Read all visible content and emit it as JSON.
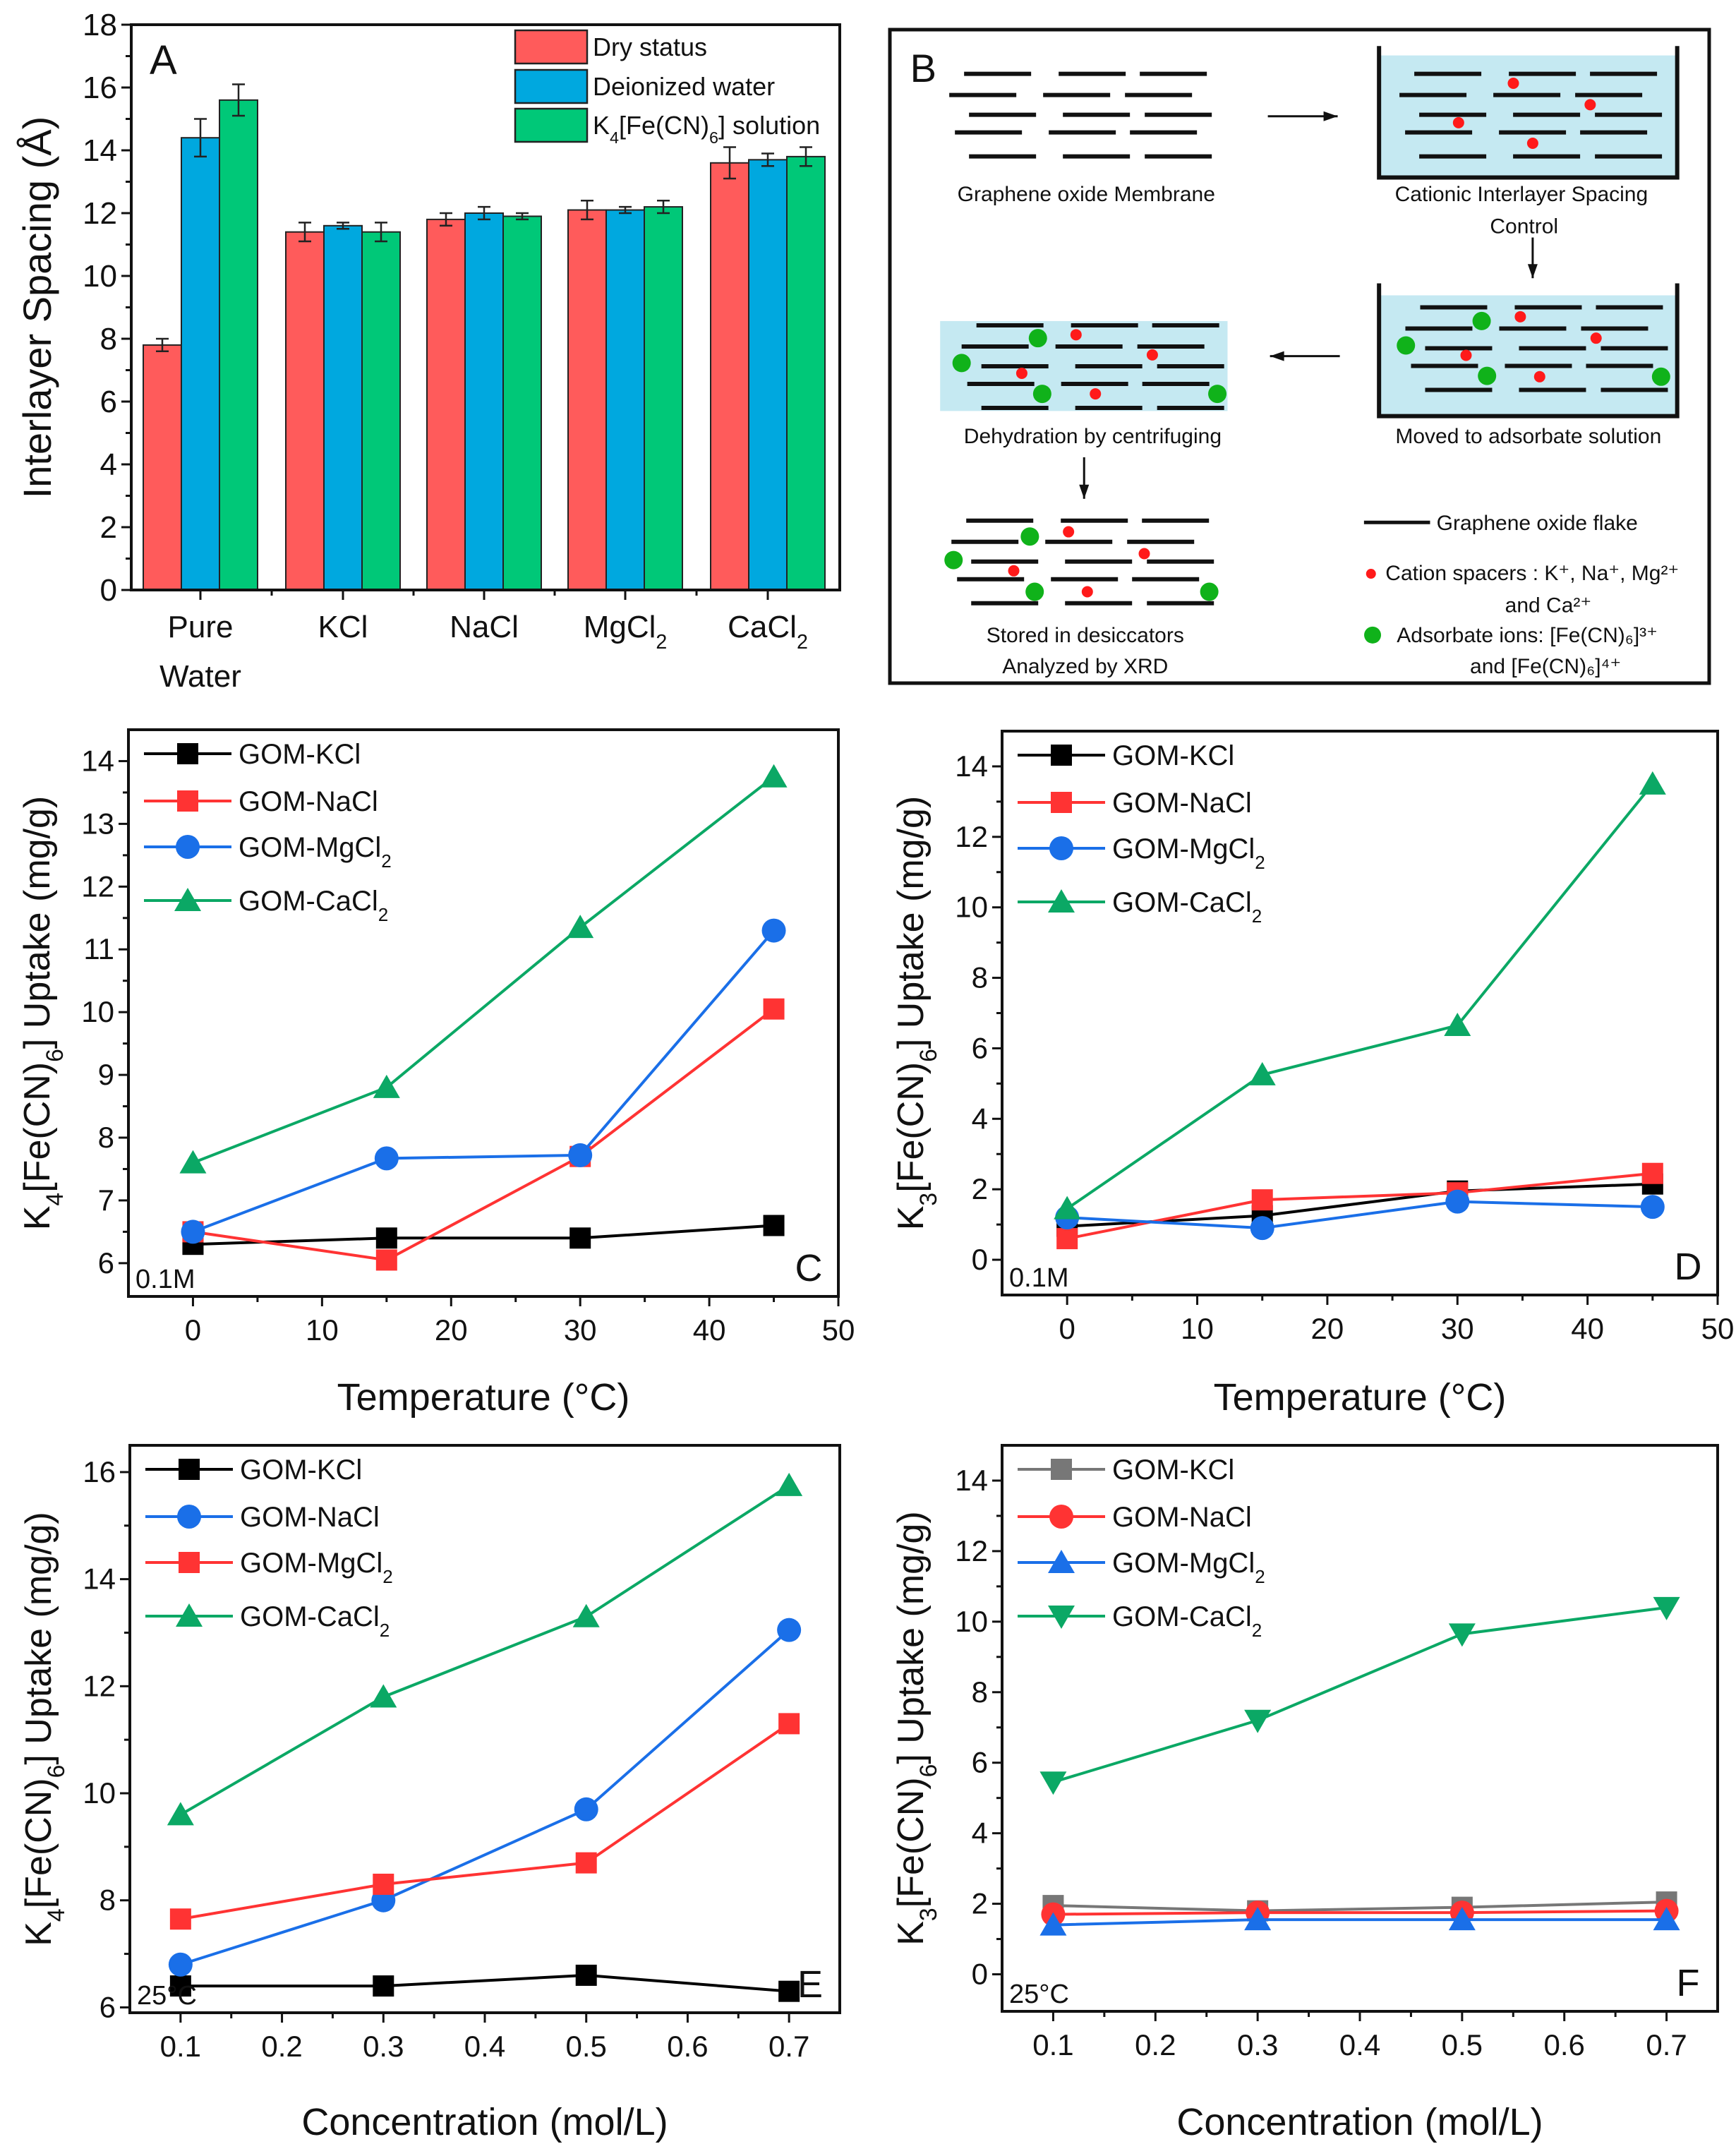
{
  "chart_data": [
    {
      "panel": "A",
      "type": "bar",
      "ylabel": "Interlayer Spacing (Å)",
      "xlabel": "",
      "ylim": [
        0,
        18
      ],
      "yticks": [
        "0",
        "2",
        "4",
        "6",
        "8",
        "10",
        "12",
        "14",
        "16",
        "18"
      ],
      "categories": [
        "Pure Water",
        "KCl",
        "NaCl",
        "MgCl2",
        "CaCl2"
      ],
      "series": [
        {
          "name": "Dry status",
          "color": "#FF5B5B",
          "values": [
            7.8,
            11.4,
            11.8,
            12.1,
            13.6
          ],
          "errors": [
            0.2,
            0.3,
            0.2,
            0.3,
            0.5
          ]
        },
        {
          "name": "Deionized water",
          "color": "#00A8DF",
          "values": [
            14.4,
            11.6,
            12.0,
            12.1,
            13.7
          ],
          "errors": [
            0.6,
            0.1,
            0.2,
            0.1,
            0.2
          ]
        },
        {
          "name": "K4[Fe(CN)6] solution",
          "color": "#00C878",
          "values": [
            15.6,
            11.4,
            11.9,
            12.2,
            13.8
          ],
          "errors": [
            0.5,
            0.3,
            0.1,
            0.2,
            0.3
          ]
        }
      ],
      "legend": "top-right",
      "grid": false
    },
    {
      "panel": "C",
      "type": "line",
      "xlabel": "Temperature (°C)",
      "ylabel": "K4[Fe(CN)6] Uptake (mg/g)",
      "annotation": "0.1M",
      "xlim": [
        -5,
        50
      ],
      "ylim": [
        5.47,
        14.5
      ],
      "xticks": [
        "0",
        "10",
        "20",
        "30",
        "40",
        "50"
      ],
      "yticks": [
        "6",
        "7",
        "8",
        "9",
        "10",
        "11",
        "12",
        "13",
        "14"
      ],
      "x": [
        0,
        15,
        30,
        45
      ],
      "series": [
        {
          "name": "GOM-KCl",
          "color": "#000000",
          "marker": "square",
          "values": [
            6.3,
            6.4,
            6.4,
            6.6
          ]
        },
        {
          "name": "GOM-NaCl",
          "color": "#FF3333",
          "marker": "square",
          "values": [
            6.5,
            6.05,
            7.7,
            10.05
          ]
        },
        {
          "name": "GOM-MgCl2",
          "color": "#1A6FE8",
          "marker": "circle",
          "values": [
            6.5,
            7.67,
            7.72,
            11.3
          ]
        },
        {
          "name": "GOM-CaCl2",
          "color": "#0BA865",
          "marker": "triangle-up",
          "values": [
            7.6,
            8.8,
            11.35,
            13.75
          ]
        }
      ],
      "legend": "top-left",
      "grid": false
    },
    {
      "panel": "D",
      "type": "line",
      "xlabel": "Temperature (°C)",
      "ylabel": "K3[Fe(CN)6] Uptake (mg/g)",
      "annotation": "0.1M",
      "xlim": [
        -5,
        50
      ],
      "ylim": [
        -1,
        15
      ],
      "xticks": [
        "0",
        "10",
        "20",
        "30",
        "40",
        "50"
      ],
      "yticks": [
        "0",
        "2",
        "4",
        "6",
        "8",
        "10",
        "12",
        "14"
      ],
      "x": [
        0,
        15,
        30,
        45
      ],
      "series": [
        {
          "name": "GOM-KCl",
          "color": "#000000",
          "marker": "square",
          "values": [
            0.95,
            1.25,
            1.95,
            2.15
          ]
        },
        {
          "name": "GOM-NaCl",
          "color": "#FF3333",
          "marker": "square",
          "values": [
            0.6,
            1.7,
            1.9,
            2.45
          ]
        },
        {
          "name": "GOM-MgCl2",
          "color": "#1A6FE8",
          "marker": "circle",
          "values": [
            1.2,
            0.9,
            1.65,
            1.5
          ]
        },
        {
          "name": "GOM-CaCl2",
          "color": "#0BA865",
          "marker": "triangle-up",
          "values": [
            1.45,
            5.25,
            6.65,
            13.5
          ]
        }
      ],
      "legend": "top-left",
      "grid": false
    },
    {
      "panel": "E",
      "type": "line",
      "xlabel": "Concentration (mol/L)",
      "ylabel": "K4[Fe(CN)6] Uptake (mg/g)",
      "annotation": "25°C",
      "xlim": [
        0.05,
        0.75
      ],
      "ylim": [
        5.9,
        16.5
      ],
      "xticks": [
        "0.1",
        "0.2",
        "0.3",
        "0.4",
        "0.5",
        "0.6",
        "0.7"
      ],
      "yticks": [
        "6",
        "8",
        "10",
        "12",
        "14",
        "16"
      ],
      "x": [
        0.1,
        0.3,
        0.5,
        0.7
      ],
      "series": [
        {
          "name": "GOM-KCl",
          "color": "#000000",
          "marker": "square",
          "values": [
            6.4,
            6.4,
            6.6,
            6.3
          ]
        },
        {
          "name": "GOM-NaCl",
          "color": "#1A6FE8",
          "marker": "circle",
          "values": [
            6.8,
            8.0,
            9.7,
            13.05
          ]
        },
        {
          "name": "GOM-MgCl2",
          "color": "#FF3333",
          "marker": "square",
          "values": [
            7.65,
            8.3,
            8.7,
            11.3
          ]
        },
        {
          "name": "GOM-CaCl2",
          "color": "#0BA865",
          "marker": "triangle-up",
          "values": [
            9.6,
            11.8,
            13.3,
            15.75
          ]
        }
      ],
      "legend": "top-left",
      "grid": false
    },
    {
      "panel": "F",
      "type": "line",
      "xlabel": "Concentration (mol/L)",
      "ylabel": "K3[Fe(CN)6] Uptake (mg/g)",
      "annotation": "25°C",
      "xlim": [
        0.05,
        0.75
      ],
      "ylim": [
        -1.05,
        15
      ],
      "xticks": [
        "0.1",
        "0.2",
        "0.3",
        "0.4",
        "0.5",
        "0.6",
        "0.7"
      ],
      "yticks": [
        "0",
        "2",
        "4",
        "6",
        "8",
        "10",
        "12",
        "14"
      ],
      "x": [
        0.1,
        0.3,
        0.5,
        0.7
      ],
      "series": [
        {
          "name": "GOM-KCl",
          "color": "#777777",
          "marker": "square",
          "values": [
            1.95,
            1.8,
            1.9,
            2.05
          ]
        },
        {
          "name": "GOM-NaCl",
          "color": "#FF3333",
          "marker": "circle",
          "values": [
            1.7,
            1.75,
            1.75,
            1.8
          ]
        },
        {
          "name": "GOM-MgCl2",
          "color": "#1A6FE8",
          "marker": "triangle-up",
          "values": [
            1.4,
            1.55,
            1.55,
            1.55
          ]
        },
        {
          "name": "GOM-CaCl2",
          "color": "#0BA865",
          "marker": "triangle-down",
          "values": [
            5.45,
            7.2,
            9.65,
            10.4
          ]
        }
      ],
      "legend": "top-left",
      "grid": false
    }
  ],
  "diagram": {
    "panel": "B",
    "steps": {
      "membrane": "Graphene oxide Membrane",
      "spacing_control_1": "Cationic Interlayer Spacing",
      "spacing_control_2": "Control",
      "adsorbate": "Moved to adsorbate solution",
      "dehydration": "Dehydration by centrifuging",
      "stored_1": "Stored in desiccators",
      "stored_2": "Analyzed by XRD"
    },
    "legend": {
      "flake": "Graphene oxide flake",
      "cation_1": "Cation spacers : K⁺, Na⁺, Mg²⁺",
      "cation_2": "and Ca²⁺",
      "adsorbate_1": "Adsorbate ions: [Fe(CN)₆]³⁺",
      "adsorbate_2": "and [Fe(CN)₆]⁴⁺"
    },
    "colors": {
      "water": "#C5E9F2",
      "cation": "#FF1A1A",
      "adsorbate": "#10B21A",
      "flake": "#111111"
    }
  }
}
